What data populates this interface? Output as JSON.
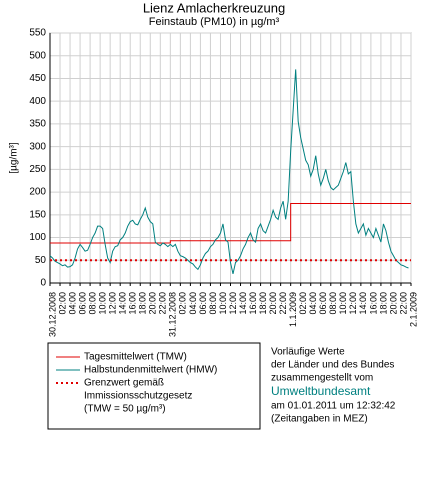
{
  "chart_data": {
    "type": "line",
    "title": "Lienz Amlacherkreuzung",
    "subtitle": "Feinstaub (PM10) in µg/m³",
    "y_label": "[µg/m³]",
    "xlim": [
      0,
      72
    ],
    "ylim": [
      0,
      550
    ],
    "yticks": [
      0,
      50,
      100,
      150,
      200,
      250,
      300,
      350,
      400,
      450,
      500,
      550
    ],
    "xticks": [
      {
        "value": 0,
        "label": "30.12.2008"
      },
      {
        "value": 2,
        "label": "02:00"
      },
      {
        "value": 4,
        "label": "04:00"
      },
      {
        "value": 6,
        "label": "06:00"
      },
      {
        "value": 8,
        "label": "08:00"
      },
      {
        "value": 10,
        "label": "10:00"
      },
      {
        "value": 12,
        "label": "12:00"
      },
      {
        "value": 14,
        "label": "14:00"
      },
      {
        "value": 16,
        "label": "16:00"
      },
      {
        "value": 18,
        "label": "18:00"
      },
      {
        "value": 20,
        "label": "20:00"
      },
      {
        "value": 22,
        "label": "22:00"
      },
      {
        "value": 24,
        "label": "31.12.2008"
      },
      {
        "value": 26,
        "label": "02:00"
      },
      {
        "value": 28,
        "label": "04:00"
      },
      {
        "value": 30,
        "label": "06:00"
      },
      {
        "value": 32,
        "label": "08:00"
      },
      {
        "value": 34,
        "label": "10:00"
      },
      {
        "value": 36,
        "label": "12:00"
      },
      {
        "value": 38,
        "label": "14:00"
      },
      {
        "value": 40,
        "label": "16:00"
      },
      {
        "value": 42,
        "label": "18:00"
      },
      {
        "value": 44,
        "label": "20:00"
      },
      {
        "value": 46,
        "label": "22:00"
      },
      {
        "value": 48,
        "label": "1.1.2009"
      },
      {
        "value": 50,
        "label": "02:00"
      },
      {
        "value": 52,
        "label": "04:00"
      },
      {
        "value": 54,
        "label": "06:00"
      },
      {
        "value": 56,
        "label": "08:00"
      },
      {
        "value": 58,
        "label": "10:00"
      },
      {
        "value": 60,
        "label": "12:00"
      },
      {
        "value": 62,
        "label": "14:00"
      },
      {
        "value": 64,
        "label": "16:00"
      },
      {
        "value": 66,
        "label": "18:00"
      },
      {
        "value": 68,
        "label": "20:00"
      },
      {
        "value": 70,
        "label": "22:00"
      },
      {
        "value": 72,
        "label": "2.1.2009"
      }
    ],
    "grid": true,
    "series": [
      {
        "name": "Tagesmittelwert (TMW)",
        "color": "#e00000",
        "dash": "none",
        "x": [
          0,
          24,
          24,
          48,
          48,
          72
        ],
        "values": [
          88,
          88,
          93,
          93,
          175,
          175
        ]
      },
      {
        "name": "Halbstundenmittelwert (HMW)",
        "color": "#008080",
        "dash": "none",
        "x": [
          0,
          0.5,
          1,
          1.5,
          2,
          2.5,
          3,
          3.5,
          4,
          4.5,
          5,
          5.5,
          6,
          6.5,
          7,
          7.5,
          8,
          8.5,
          9,
          9.5,
          10,
          10.5,
          11,
          11.5,
          12,
          12.5,
          13,
          13.5,
          14,
          14.5,
          15,
          15.5,
          16,
          16.5,
          17,
          17.5,
          18,
          18.5,
          19,
          19.5,
          20,
          20.5,
          21,
          21.5,
          22,
          22.5,
          23,
          23.5,
          24,
          24.5,
          25,
          25.5,
          26,
          26.5,
          27,
          27.5,
          28,
          28.5,
          29,
          29.5,
          30,
          30.5,
          31,
          31.5,
          32,
          32.5,
          33,
          33.5,
          34,
          34.5,
          35,
          35.5,
          36,
          36.5,
          37,
          37.5,
          38,
          38.5,
          39,
          39.5,
          40,
          40.5,
          41,
          41.5,
          42,
          42.5,
          43,
          43.5,
          44,
          44.5,
          45,
          45.5,
          46,
          46.5,
          47,
          47.5,
          48,
          48.5,
          49,
          49.5,
          50,
          50.5,
          51,
          51.5,
          52,
          52.5,
          53,
          53.5,
          54,
          54.5,
          55,
          55.5,
          56,
          56.5,
          57,
          57.5,
          58,
          58.5,
          59,
          59.5,
          60,
          60.5,
          61,
          61.5,
          62,
          62.5,
          63,
          63.5,
          64,
          64.5,
          65,
          65.5,
          66,
          66.5,
          67,
          67.5,
          68,
          68.5,
          69,
          69.5,
          70,
          70.5,
          71,
          71.5
        ],
        "values": [
          60,
          55,
          48,
          45,
          42,
          38,
          40,
          35,
          36,
          40,
          55,
          75,
          85,
          78,
          70,
          72,
          85,
          100,
          110,
          125,
          125,
          120,
          85,
          55,
          45,
          70,
          80,
          82,
          95,
          100,
          110,
          125,
          135,
          138,
          130,
          128,
          140,
          150,
          165,
          145,
          135,
          130,
          90,
          85,
          82,
          88,
          85,
          80,
          85,
          80,
          85,
          70,
          60,
          58,
          55,
          50,
          45,
          42,
          35,
          30,
          40,
          55,
          65,
          70,
          80,
          85,
          95,
          100,
          110,
          130,
          95,
          90,
          45,
          20,
          45,
          50,
          60,
          75,
          85,
          100,
          110,
          95,
          90,
          120,
          130,
          115,
          110,
          125,
          140,
          160,
          145,
          140,
          165,
          180,
          140,
          180,
          290,
          380,
          470,
          355,
          320,
          295,
          270,
          260,
          235,
          250,
          280,
          240,
          215,
          230,
          250,
          225,
          210,
          205,
          210,
          215,
          230,
          245,
          265,
          240,
          245,
          180,
          130,
          110,
          120,
          130,
          105,
          120,
          110,
          100,
          120,
          105,
          90,
          130,
          115,
          90,
          70,
          60,
          50,
          45,
          40,
          38,
          35,
          33
        ]
      },
      {
        "name": [
          "Grenzwert gemäß",
          "Immissionsschutzgesetz",
          "(TMW = 50 µg/m³)"
        ],
        "color": "#e00000",
        "dash": "2 3",
        "x": [
          0,
          72
        ],
        "values": [
          50,
          50
        ]
      }
    ]
  },
  "note": [
    "Vorläufige Werte",
    "der Länder und des Bundes",
    "zusammengestellt vom",
    "Umweltbundesamt",
    "am 01.01.2011 um 12:32:42",
    "(Zeitangaben in MEZ)"
  ]
}
